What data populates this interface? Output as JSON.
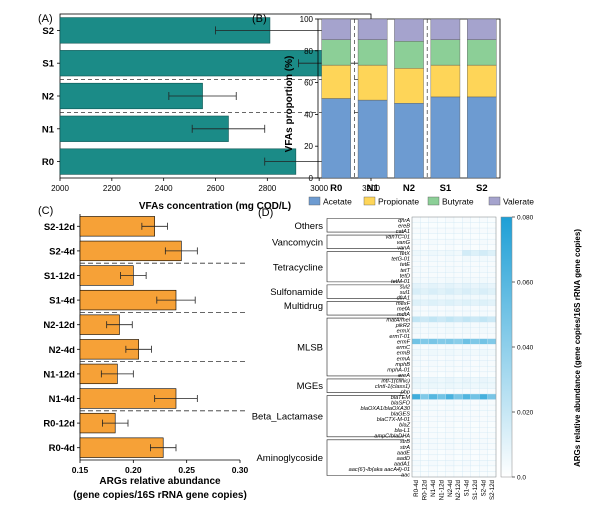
{
  "colors": {
    "teal": "#1b8b87",
    "orange": "#f6a137",
    "acetate": "#6d9bd1",
    "propionate": "#fed558",
    "butyrate": "#8ccf97",
    "valerate": "#a5a3cd",
    "heat_low": "#ffffff",
    "heat_high": "#1e9fd6"
  },
  "chart_data": [
    {
      "panel": "(A)",
      "type": "bar",
      "orientation": "horizontal",
      "categories": [
        "S2",
        "S1",
        "N2",
        "N1",
        "R0"
      ],
      "values": [
        2810,
        3050,
        2550,
        2650,
        2910
      ],
      "errors": [
        210,
        130,
        130,
        140,
        120
      ],
      "xlabel": "VFAs concentration (mg COD/L)",
      "xlim": [
        2000,
        3200
      ],
      "xticks": [
        "2000",
        "2200",
        "2400",
        "2600",
        "2800",
        "3000",
        "3200"
      ]
    },
    {
      "panel": "(B)",
      "type": "bar",
      "stacked": true,
      "categories": [
        "R0",
        "N1",
        "N2",
        "S1",
        "S2"
      ],
      "series": [
        {
          "name": "Acetate",
          "values": [
            50,
            49,
            47,
            51,
            51
          ]
        },
        {
          "name": "Propionate",
          "values": [
            21,
            22,
            22,
            20,
            20
          ]
        },
        {
          "name": "Butyrate",
          "values": [
            16,
            16,
            17,
            16,
            16
          ]
        },
        {
          "name": "Valerate",
          "values": [
            13,
            13,
            14,
            13,
            13
          ]
        }
      ],
      "ylabel": "VFAs proportion (%)",
      "ylim": [
        0,
        100
      ],
      "yticks": [
        "0",
        "20",
        "40",
        "60",
        "80",
        "100"
      ],
      "legend": "bottom"
    },
    {
      "panel": "(C)",
      "type": "bar",
      "orientation": "horizontal",
      "categories": [
        "S2-12d",
        "S2-4d",
        "S1-12d",
        "S1-4d",
        "N2-12d",
        "N2-4d",
        "N1-12d",
        "N1-4d",
        "R0-12d",
        "R0-4d"
      ],
      "values": [
        0.22,
        0.245,
        0.2,
        0.24,
        0.187,
        0.205,
        0.185,
        0.24,
        0.183,
        0.228
      ],
      "errors": [
        0.012,
        0.015,
        0.012,
        0.018,
        0.012,
        0.012,
        0.015,
        0.02,
        0.012,
        0.012
      ],
      "xlabel": "ARGs relative abundance",
      "xlabel2": "(gene copies/16S rRNA gene copies)",
      "xlim": [
        0.15,
        0.3
      ],
      "xticks": [
        "0.15",
        "0.20",
        "0.25",
        "0.30"
      ]
    },
    {
      "panel": "(D)",
      "type": "heatmap",
      "columns": [
        "R0-4d",
        "R0-12d",
        "N1-4d",
        "N1-12d",
        "N2-4d",
        "N2-12d",
        "S1-4d",
        "S1-12d",
        "S2-4d",
        "S2-12d"
      ],
      "rows": [
        "qnrA",
        "ereB",
        "catA1",
        "vanTC-01",
        "vanG",
        "vanA",
        "tetX",
        "tetG-01",
        "tetE",
        "tetT",
        "tetD",
        "tetM-01",
        "sul2",
        "sul1",
        "dfrA1",
        "mexF",
        "mefA",
        "mdtA",
        "matA/mel",
        "pikR2",
        "ermX",
        "ermT-01",
        "ermF",
        "ermC",
        "ermB",
        "ermA",
        "mphB",
        "mphA-01",
        "ereA",
        "intI-1(clinic)",
        "cIntI-1(class1)",
        "pbp",
        "blaTEM",
        "blaSFO",
        "blaOXA1/blaOXA30",
        "blaGES",
        "blaCTX-M-01",
        "blaZ",
        "bla-L1",
        "ampC/blaDHA",
        "strB",
        "strA",
        "aadE",
        "aadD",
        "aadA1",
        "aac(6')-lb(aka aacA4)-01",
        "aac"
      ],
      "groups": [
        "Others",
        "Vancomycin",
        "Tetracycline",
        "Sulfonamide",
        "Multidrug",
        "MLSB",
        "MGEs",
        "Beta_Lactamase",
        "Aminoglycoside"
      ],
      "colorbar_label": "ARGs relative abundance (gene copies/16S rRNA gene copies)",
      "colorbar_range": [
        0,
        0.08
      ],
      "colorbar_ticks": [
        "0.080",
        "0.060",
        "0.040",
        "0.020",
        "0.0"
      ],
      "values": [
        [
          0.003,
          0.002,
          0.003,
          0.002,
          0.003,
          0.002,
          0.003,
          0.002,
          0.003,
          0.002
        ],
        [
          0.002,
          0.002,
          0.002,
          0.002,
          0.002,
          0.002,
          0.002,
          0.002,
          0.002,
          0.002
        ],
        [
          0.003,
          0.003,
          0.003,
          0.003,
          0.003,
          0.003,
          0.003,
          0.003,
          0.003,
          0.003
        ],
        [
          0.002,
          0.002,
          0.002,
          0.002,
          0.002,
          0.002,
          0.002,
          0.002,
          0.002,
          0.002
        ],
        [
          0.004,
          0.003,
          0.004,
          0.003,
          0.004,
          0.003,
          0.004,
          0.003,
          0.004,
          0.003
        ],
        [
          0.003,
          0.002,
          0.003,
          0.002,
          0.003,
          0.002,
          0.003,
          0.002,
          0.003,
          0.002
        ],
        [
          0.006,
          0.005,
          0.006,
          0.005,
          0.006,
          0.005,
          0.016,
          0.012,
          0.016,
          0.012
        ],
        [
          0.004,
          0.003,
          0.004,
          0.003,
          0.004,
          0.003,
          0.005,
          0.004,
          0.005,
          0.004
        ],
        [
          0.003,
          0.003,
          0.003,
          0.003,
          0.003,
          0.003,
          0.003,
          0.003,
          0.003,
          0.003
        ],
        [
          0.004,
          0.003,
          0.004,
          0.003,
          0.004,
          0.003,
          0.004,
          0.003,
          0.004,
          0.003
        ],
        [
          0.003,
          0.003,
          0.003,
          0.003,
          0.003,
          0.003,
          0.003,
          0.003,
          0.003,
          0.003
        ],
        [
          0.005,
          0.004,
          0.005,
          0.004,
          0.005,
          0.004,
          0.005,
          0.004,
          0.005,
          0.004
        ],
        [
          0.01,
          0.008,
          0.01,
          0.008,
          0.01,
          0.008,
          0.01,
          0.008,
          0.01,
          0.008
        ],
        [
          0.014,
          0.011,
          0.014,
          0.011,
          0.014,
          0.011,
          0.014,
          0.011,
          0.014,
          0.011
        ],
        [
          0.006,
          0.005,
          0.006,
          0.005,
          0.006,
          0.005,
          0.006,
          0.005,
          0.006,
          0.005
        ],
        [
          0.012,
          0.01,
          0.012,
          0.01,
          0.012,
          0.01,
          0.012,
          0.01,
          0.012,
          0.01
        ],
        [
          0.004,
          0.003,
          0.004,
          0.003,
          0.004,
          0.003,
          0.004,
          0.003,
          0.004,
          0.003
        ],
        [
          0.004,
          0.003,
          0.004,
          0.003,
          0.004,
          0.003,
          0.004,
          0.003,
          0.004,
          0.003
        ],
        [
          0.022,
          0.018,
          0.022,
          0.018,
          0.022,
          0.018,
          0.022,
          0.018,
          0.022,
          0.018
        ],
        [
          0.005,
          0.004,
          0.005,
          0.004,
          0.005,
          0.004,
          0.005,
          0.004,
          0.005,
          0.004
        ],
        [
          0.005,
          0.004,
          0.005,
          0.004,
          0.005,
          0.004,
          0.005,
          0.004,
          0.005,
          0.004
        ],
        [
          0.003,
          0.003,
          0.003,
          0.003,
          0.003,
          0.003,
          0.003,
          0.003,
          0.003,
          0.003
        ],
        [
          0.05,
          0.045,
          0.048,
          0.044,
          0.046,
          0.042,
          0.052,
          0.046,
          0.05,
          0.045
        ],
        [
          0.004,
          0.003,
          0.004,
          0.003,
          0.004,
          0.003,
          0.004,
          0.003,
          0.004,
          0.003
        ],
        [
          0.006,
          0.005,
          0.006,
          0.005,
          0.006,
          0.005,
          0.006,
          0.005,
          0.006,
          0.005
        ],
        [
          0.004,
          0.003,
          0.004,
          0.003,
          0.004,
          0.003,
          0.004,
          0.003,
          0.004,
          0.003
        ],
        [
          0.004,
          0.003,
          0.004,
          0.003,
          0.004,
          0.003,
          0.004,
          0.003,
          0.004,
          0.003
        ],
        [
          0.003,
          0.003,
          0.003,
          0.003,
          0.003,
          0.003,
          0.003,
          0.003,
          0.003,
          0.003
        ],
        [
          0.003,
          0.002,
          0.003,
          0.002,
          0.003,
          0.002,
          0.003,
          0.002,
          0.003,
          0.002
        ],
        [
          0.008,
          0.006,
          0.008,
          0.006,
          0.008,
          0.006,
          0.008,
          0.006,
          0.008,
          0.006
        ],
        [
          0.007,
          0.006,
          0.007,
          0.006,
          0.007,
          0.006,
          0.007,
          0.006,
          0.007,
          0.006
        ],
        [
          0.003,
          0.003,
          0.003,
          0.003,
          0.003,
          0.003,
          0.003,
          0.003,
          0.003,
          0.003
        ],
        [
          0.068,
          0.045,
          0.06,
          0.05,
          0.065,
          0.048,
          0.062,
          0.05,
          0.066,
          0.048
        ],
        [
          0.004,
          0.003,
          0.004,
          0.003,
          0.004,
          0.003,
          0.004,
          0.003,
          0.004,
          0.003
        ],
        [
          0.004,
          0.003,
          0.004,
          0.003,
          0.004,
          0.003,
          0.004,
          0.003,
          0.004,
          0.003
        ],
        [
          0.003,
          0.003,
          0.003,
          0.003,
          0.003,
          0.003,
          0.003,
          0.003,
          0.003,
          0.003
        ],
        [
          0.003,
          0.003,
          0.003,
          0.003,
          0.003,
          0.003,
          0.003,
          0.003,
          0.003,
          0.003
        ],
        [
          0.003,
          0.002,
          0.003,
          0.002,
          0.003,
          0.002,
          0.003,
          0.002,
          0.003,
          0.002
        ],
        [
          0.003,
          0.002,
          0.003,
          0.002,
          0.003,
          0.002,
          0.003,
          0.002,
          0.003,
          0.002
        ],
        [
          0.003,
          0.003,
          0.003,
          0.003,
          0.003,
          0.003,
          0.003,
          0.003,
          0.003,
          0.003
        ],
        [
          0.004,
          0.003,
          0.004,
          0.003,
          0.004,
          0.003,
          0.004,
          0.003,
          0.004,
          0.003
        ],
        [
          0.004,
          0.003,
          0.004,
          0.003,
          0.004,
          0.003,
          0.004,
          0.003,
          0.004,
          0.003
        ],
        [
          0.003,
          0.002,
          0.003,
          0.002,
          0.003,
          0.002,
          0.003,
          0.002,
          0.003,
          0.002
        ],
        [
          0.003,
          0.002,
          0.003,
          0.002,
          0.003,
          0.002,
          0.003,
          0.002,
          0.003,
          0.002
        ],
        [
          0.004,
          0.003,
          0.004,
          0.003,
          0.004,
          0.003,
          0.004,
          0.003,
          0.004,
          0.003
        ],
        [
          0.003,
          0.002,
          0.003,
          0.002,
          0.003,
          0.002,
          0.003,
          0.002,
          0.003,
          0.002
        ],
        [
          0.002,
          0.002,
          0.002,
          0.002,
          0.002,
          0.002,
          0.002,
          0.002,
          0.002,
          0.002
        ]
      ]
    }
  ]
}
